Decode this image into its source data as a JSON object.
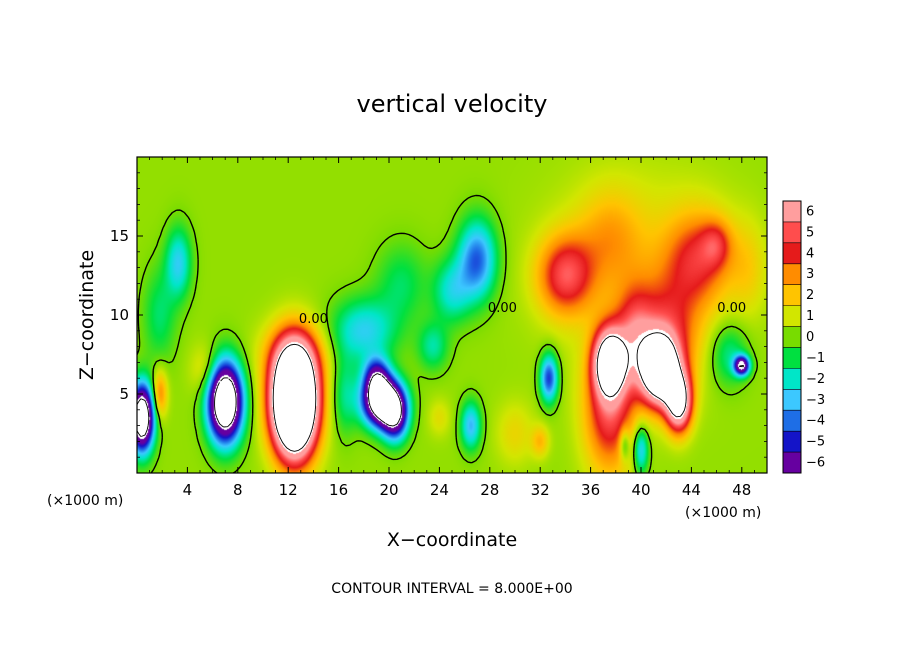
{
  "chart_data": {
    "type": "heatmap",
    "title": "vertical velocity",
    "xlabel": "X−coordinate",
    "ylabel": "Z−coordinate",
    "x_unit_label": "(×1000 m)",
    "z_unit_label": "(×1000 m)",
    "xlim": [
      0,
      50
    ],
    "ylim": [
      0,
      20
    ],
    "xticks": [
      4,
      8,
      12,
      16,
      20,
      24,
      28,
      32,
      36,
      40,
      44,
      48
    ],
    "yticks": [
      5,
      10,
      15
    ],
    "footer": "CONTOUR INTERVAL =  8.000E+00",
    "contour_labels": [
      {
        "text": "0.00",
        "x": 14.0,
        "z": 9.5
      },
      {
        "text": "0.00",
        "x": 29.0,
        "z": 10.2
      },
      {
        "text": "0.00",
        "x": 47.2,
        "z": 10.2
      }
    ],
    "colorbar": {
      "min": -6,
      "max": 6,
      "labels": [
        "6",
        "5",
        "4",
        "3",
        "2",
        "1",
        "0",
        "−1",
        "−2",
        "−3",
        "−4",
        "−5",
        "−6"
      ],
      "colors": [
        "#ff9e9e",
        "#ff4d4d",
        "#e51b1b",
        "#ff8c00",
        "#ffc400",
        "#d2e600",
        "#78dc00",
        "#00e040",
        "#00e6c8",
        "#3cc8ff",
        "#1e6ee6",
        "#1414c8",
        "#6600a0"
      ]
    },
    "features": [
      {
        "x": 3.3,
        "z": 13.3,
        "sx": 1.0,
        "sz": 2.2,
        "amp": -3.0
      },
      {
        "x": 1.8,
        "z": 10.0,
        "sx": 1.3,
        "sz": 3.0,
        "amp": -1.6
      },
      {
        "x": 0.4,
        "z": 3.5,
        "sx": 0.9,
        "sz": 2.0,
        "amp": -12.0
      },
      {
        "x": 1.8,
        "z": 5.0,
        "sx": 0.6,
        "sz": 1.5,
        "amp": 3.0
      },
      {
        "x": 7.0,
        "z": 4.5,
        "sx": 1.3,
        "sz": 2.4,
        "amp": -13.0
      },
      {
        "x": 5.5,
        "z": 6.5,
        "sx": 1.2,
        "sz": 1.6,
        "amp": 1.4
      },
      {
        "x": 12.5,
        "z": 4.5,
        "sx": 1.7,
        "sz": 3.2,
        "amp": 20.0
      },
      {
        "x": 12.5,
        "z": 7.5,
        "sx": 2.5,
        "sz": 2.0,
        "amp": 2.5
      },
      {
        "x": 16.5,
        "z": 5.0,
        "sx": 1.0,
        "sz": 2.5,
        "amp": -1.8
      },
      {
        "x": 19.0,
        "z": 6.0,
        "sx": 1.0,
        "sz": 1.3,
        "amp": -5.5
      },
      {
        "x": 19.5,
        "z": 4.5,
        "sx": 1.5,
        "sz": 1.5,
        "amp": -12.0
      },
      {
        "x": 20.5,
        "z": 3.5,
        "sx": 1.0,
        "sz": 1.5,
        "amp": -6.0
      },
      {
        "x": 18.0,
        "z": 9.0,
        "sx": 2.5,
        "sz": 2.0,
        "amp": -3.0
      },
      {
        "x": 21.0,
        "z": 12.0,
        "sx": 2.0,
        "sz": 2.5,
        "amp": -1.5
      },
      {
        "x": 27.0,
        "z": 13.5,
        "sx": 1.5,
        "sz": 2.5,
        "amp": -4.5
      },
      {
        "x": 25.0,
        "z": 11.5,
        "sx": 1.5,
        "sz": 2.0,
        "amp": -2.5
      },
      {
        "x": 23.5,
        "z": 8.0,
        "sx": 1.2,
        "sz": 1.5,
        "amp": -2.0
      },
      {
        "x": 26.5,
        "z": 3.0,
        "sx": 0.8,
        "sz": 1.5,
        "amp": -3.5
      },
      {
        "x": 24.0,
        "z": 3.5,
        "sx": 0.9,
        "sz": 1.2,
        "amp": 1.0
      },
      {
        "x": 30.0,
        "z": 2.5,
        "sx": 1.5,
        "sz": 2.0,
        "amp": 1.2
      },
      {
        "x": 32.7,
        "z": 6.0,
        "sx": 0.7,
        "sz": 1.5,
        "amp": -5.0
      },
      {
        "x": 32.0,
        "z": 2.0,
        "sx": 0.7,
        "sz": 1.0,
        "amp": 1.8
      },
      {
        "x": 34.0,
        "z": 12.5,
        "sx": 2.2,
        "sz": 2.5,
        "amp": 4.2
      },
      {
        "x": 37.5,
        "z": 15.0,
        "sx": 2.5,
        "sz": 3.0,
        "amp": 1.6
      },
      {
        "x": 37.5,
        "z": 7.0,
        "sx": 1.2,
        "sz": 2.0,
        "amp": 10.0
      },
      {
        "x": 37.5,
        "z": 4.0,
        "sx": 2.0,
        "sz": 4.0,
        "amp": 4.5
      },
      {
        "x": 39.5,
        "z": 8.5,
        "sx": 1.5,
        "sz": 3.0,
        "amp": 3.5
      },
      {
        "x": 41.5,
        "z": 6.5,
        "sx": 1.4,
        "sz": 2.0,
        "amp": 12.0
      },
      {
        "x": 43.0,
        "z": 4.5,
        "sx": 1.0,
        "sz": 1.8,
        "amp": 9.0
      },
      {
        "x": 42.0,
        "z": 8.5,
        "sx": 2.5,
        "sz": 3.5,
        "amp": 3.5
      },
      {
        "x": 44.5,
        "z": 13.5,
        "sx": 2.5,
        "sz": 3.0,
        "amp": 3.2
      },
      {
        "x": 46.0,
        "z": 14.5,
        "sx": 1.2,
        "sz": 1.5,
        "amp": 2.2
      },
      {
        "x": 40.0,
        "z": 1.5,
        "sx": 0.6,
        "sz": 1.5,
        "amp": -3.5
      },
      {
        "x": 38.7,
        "z": 1.8,
        "sx": 0.4,
        "sz": 1.0,
        "amp": -2.5
      },
      {
        "x": 47.0,
        "z": 7.5,
        "sx": 1.5,
        "sz": 2.0,
        "amp": -2.0
      },
      {
        "x": 48.0,
        "z": 6.8,
        "sx": 0.6,
        "sz": 0.6,
        "amp": -8.0
      },
      {
        "x": 48.5,
        "z": 13.0,
        "sx": 1.5,
        "sz": 3.0,
        "amp": 1.2
      }
    ]
  }
}
